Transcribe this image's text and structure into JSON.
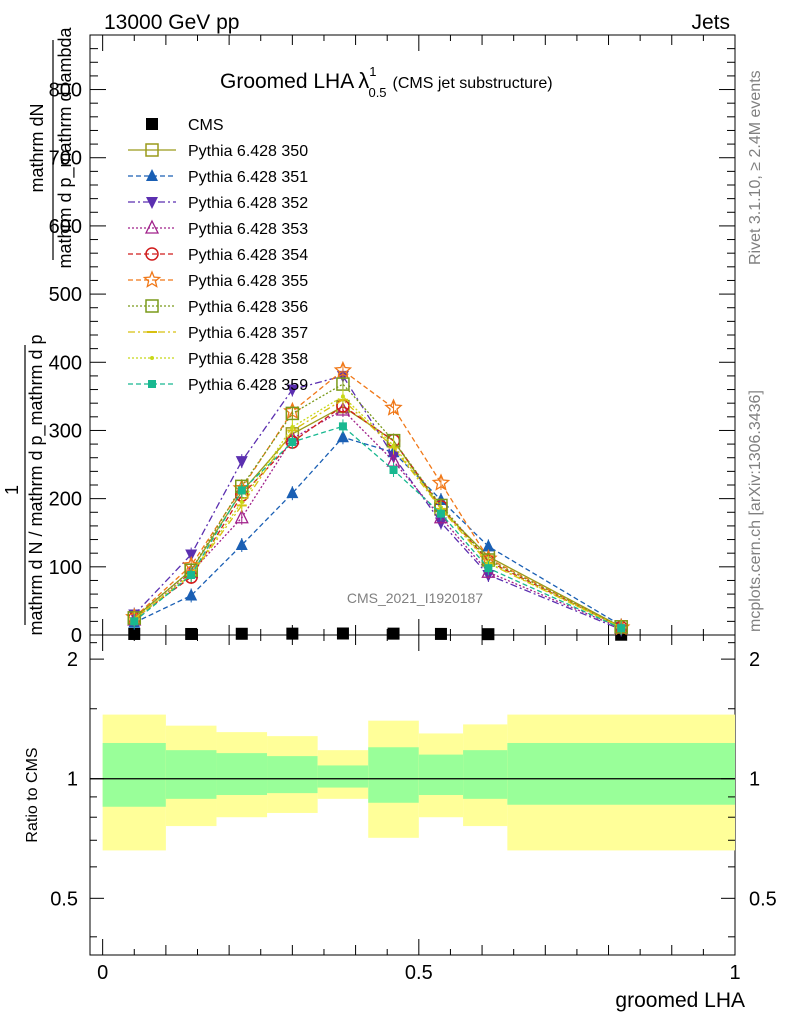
{
  "header": {
    "left": "13000 GeV pp",
    "right": "Jets"
  },
  "side_labels": {
    "rivet": "Rivet 3.1.10, ≥ 2.4M events",
    "mcplots": "mcplots.cern.ch [arXiv:1306.3436]"
  },
  "watermark": "CMS_2021_I1920187",
  "chart_data": [
    {
      "type": "line",
      "title": "Groomed LHA",
      "title_symbol": "λ",
      "title_sup": "1",
      "title_sub": "0.5",
      "subtitle": "(CMS jet substructure)",
      "xlabel": "groomed LHA",
      "ylabel_numerator": "mathrm dN",
      "ylabel_denominator": "mathrm d p_mathrm d lambda",
      "ylabel_prefix_numerator": "1",
      "ylabel_prefix_denominator": "mathrm d N / mathrm d p_mathrm d p",
      "xlim": [
        -0.02,
        1.0
      ],
      "ylim": [
        0,
        880
      ],
      "yticks": [
        0,
        100,
        200,
        300,
        400,
        500,
        600,
        700,
        800
      ],
      "ytick_labels": [
        "0",
        "100",
        "200",
        "300",
        "400",
        "500",
        "600",
        "700",
        "800"
      ],
      "x": [
        0.05,
        0.14,
        0.22,
        0.3,
        0.38,
        0.46,
        0.535,
        0.61,
        0.82
      ],
      "series": [
        {
          "name": "CMS",
          "marker": "square-filled",
          "dash": "none",
          "color": "#000000",
          "values": [
            1.5,
            1.5,
            1.8,
            2.0,
            2.2,
            2.0,
            1.6,
            1.2,
            0.4
          ]
        },
        {
          "name": "Pythia 6.428 350",
          "marker": "square-open",
          "dash": "solid",
          "color": "#9a9a1a",
          "values": [
            25,
            95,
            210,
            295,
            335,
            285,
            185,
            115,
            12
          ]
        },
        {
          "name": "Pythia 6.428 351",
          "marker": "triangle-up-filled",
          "dash": "dashed",
          "color": "#1a5fb4",
          "values": [
            18,
            58,
            132,
            208,
            290,
            268,
            198,
            130,
            14
          ]
        },
        {
          "name": "Pythia 6.428 352",
          "marker": "triangle-down-filled",
          "dash": "dashdot",
          "color": "#5b2fb0",
          "values": [
            30,
            118,
            255,
            360,
            380,
            262,
            165,
            88,
            8
          ]
        },
        {
          "name": "Pythia 6.428 353",
          "marker": "triangle-up-open",
          "dash": "dotted",
          "color": "#a0208a",
          "values": [
            22,
            92,
            172,
            288,
            330,
            255,
            172,
            92,
            10
          ]
        },
        {
          "name": "Pythia 6.428 354",
          "marker": "circle-open",
          "dash": "dashed",
          "color": "#d01c1c",
          "values": [
            24,
            85,
            205,
            283,
            336,
            285,
            188,
            108,
            11
          ]
        },
        {
          "name": "Pythia 6.428 355",
          "marker": "star-open",
          "dash": "dashed",
          "color": "#f07818",
          "values": [
            26,
            102,
            215,
            328,
            388,
            333,
            223,
            112,
            11
          ]
        },
        {
          "name": "Pythia 6.428 356",
          "marker": "square-open",
          "dash": "dotted",
          "color": "#7a9a1a",
          "values": [
            25,
            95,
            218,
            325,
            368,
            285,
            190,
            110,
            12
          ]
        },
        {
          "name": "Pythia 6.428 357",
          "marker": "dash",
          "dash": "dashdot",
          "color": "#d8c010",
          "values": [
            24,
            88,
            190,
            300,
            345,
            275,
            185,
            105,
            11
          ]
        },
        {
          "name": "Pythia 6.428 358",
          "marker": "dot",
          "dash": "dotted",
          "color": "#c8d818",
          "values": [
            23,
            90,
            195,
            305,
            350,
            278,
            187,
            106,
            11
          ]
        },
        {
          "name": "Pythia 6.428 359",
          "marker": "square-filled-small",
          "dash": "dashed",
          "color": "#18b890",
          "values": [
            20,
            88,
            212,
            283,
            306,
            242,
            178,
            98,
            10
          ]
        }
      ]
    },
    {
      "type": "area",
      "ylabel": "Ratio to CMS",
      "xlabel": "groomed LHA",
      "xlim": [
        -0.02,
        1.0
      ],
      "ylim": [
        0.36,
        2.3
      ],
      "yscale": "log",
      "yticks": [
        0.5,
        1,
        2
      ],
      "ytick_labels": [
        "0.5",
        "1",
        "2"
      ],
      "xticks": [
        0,
        0.5,
        1
      ],
      "xtick_labels": [
        "0",
        "0.5",
        "1"
      ],
      "bins": [
        0.0,
        0.1,
        0.18,
        0.26,
        0.34,
        0.42,
        0.5,
        0.57,
        0.64,
        1.0
      ],
      "band_outer_low": [
        0.66,
        0.76,
        0.8,
        0.82,
        0.89,
        0.71,
        0.8,
        0.76,
        0.66
      ],
      "band_outer_high": [
        1.45,
        1.36,
        1.31,
        1.28,
        1.18,
        1.4,
        1.3,
        1.37,
        1.45
      ],
      "band_inner_low": [
        0.85,
        0.89,
        0.91,
        0.92,
        0.95,
        0.87,
        0.91,
        0.89,
        0.86
      ],
      "band_inner_high": [
        1.23,
        1.18,
        1.16,
        1.14,
        1.08,
        1.2,
        1.15,
        1.18,
        1.23
      ],
      "colors": {
        "outer": "#ffff99",
        "inner": "#99ff99",
        "reference": "#000000"
      }
    }
  ]
}
